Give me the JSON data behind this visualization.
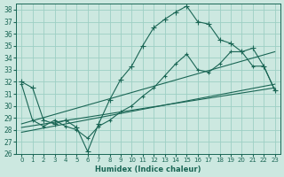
{
  "xlabel": "Humidex (Indice chaleur)",
  "bg_color": "#cce8e0",
  "grid_color": "#9dcfc4",
  "line_color": "#1a6655",
  "xlim": [
    -0.5,
    23.5
  ],
  "ylim": [
    26,
    38.5
  ],
  "yticks": [
    26,
    27,
    28,
    29,
    30,
    31,
    32,
    33,
    34,
    35,
    36,
    37,
    38
  ],
  "xticks": [
    0,
    1,
    2,
    3,
    4,
    5,
    6,
    7,
    8,
    9,
    10,
    11,
    12,
    13,
    14,
    15,
    16,
    17,
    18,
    19,
    20,
    21,
    22,
    23
  ],
  "series1_x": [
    0,
    1,
    2,
    3,
    4,
    5,
    6,
    7,
    8,
    9,
    10,
    11,
    12,
    13,
    14,
    15,
    16,
    17,
    18,
    19,
    20,
    21,
    22,
    23
  ],
  "series1_y": [
    32.0,
    31.5,
    28.8,
    28.5,
    28.8,
    28.2,
    26.2,
    28.5,
    30.5,
    32.2,
    33.3,
    35.0,
    36.5,
    37.2,
    37.8,
    38.3,
    37.0,
    36.8,
    35.5,
    35.2,
    34.5,
    34.8,
    33.3,
    31.3
  ],
  "series2_x": [
    0,
    1,
    2,
    3,
    4,
    5,
    6,
    7,
    8,
    9,
    10,
    11,
    12,
    13,
    14,
    15,
    16,
    17,
    18,
    19,
    20,
    21,
    22,
    23
  ],
  "series2_y": [
    31.8,
    28.8,
    28.3,
    28.8,
    28.3,
    28.0,
    27.3,
    28.3,
    28.8,
    29.5,
    30.0,
    30.8,
    31.5,
    32.5,
    33.5,
    34.3,
    33.0,
    32.8,
    33.5,
    34.5,
    34.5,
    33.3,
    33.3,
    31.3
  ],
  "line1_x": [
    0,
    23
  ],
  "line1_y": [
    28.2,
    31.5
  ],
  "line2_x": [
    0,
    23
  ],
  "line2_y": [
    28.5,
    34.5
  ],
  "line3_x": [
    0,
    23
  ],
  "line3_y": [
    27.8,
    31.8
  ]
}
